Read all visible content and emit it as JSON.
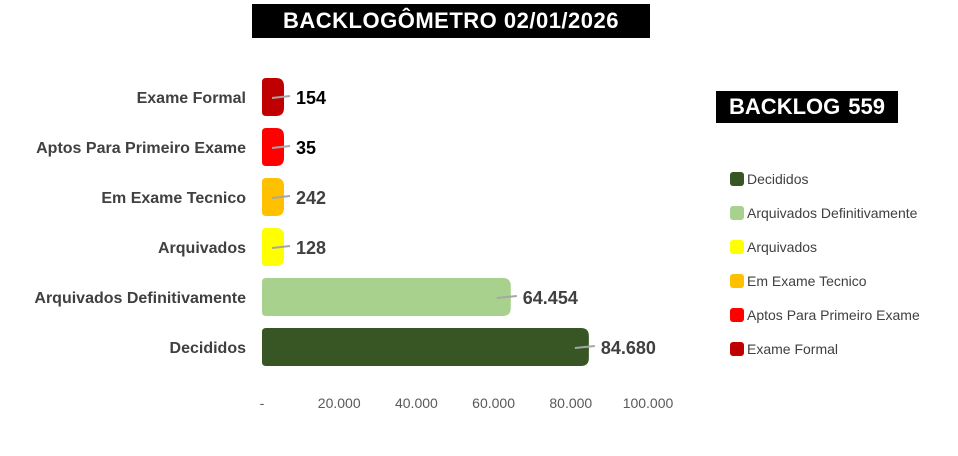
{
  "title": "BACKLOGÔMETRO 02/01/2026",
  "backlog": {
    "label": "BACKLOG",
    "value": "559"
  },
  "chart_data": {
    "type": "bar",
    "orientation": "horizontal",
    "categories": [
      "Exame Formal",
      "Aptos Para Primeiro Exame",
      "Em Exame Tecnico",
      "Arquivados",
      "Arquivados Definitivamente",
      "Decididos"
    ],
    "values": [
      154,
      35,
      242,
      128,
      64454,
      84680
    ],
    "value_labels": [
      "154",
      "35",
      "242",
      "128",
      "64.454",
      "84.680"
    ],
    "colors": [
      "#C00000",
      "#FF0000",
      "#FFC000",
      "#FFFF00",
      "#A9D18E",
      "#375623"
    ],
    "xlim": [
      0,
      100000
    ],
    "x_ticks": [
      0,
      20000,
      40000,
      60000,
      80000,
      100000
    ],
    "x_tick_labels": [
      "-",
      "20.000",
      "40.000",
      "60.000",
      "80.000",
      "100.000"
    ],
    "grid": false,
    "legend_position": "right"
  },
  "legend": [
    {
      "label": "Decididos",
      "color": "#375623"
    },
    {
      "label": "Arquivados Definitivamente",
      "color": "#A9D18E"
    },
    {
      "label": "Arquivados",
      "color": "#FFFF00"
    },
    {
      "label": "Em Exame Tecnico",
      "color": "#FFC000"
    },
    {
      "label": "Aptos Para Primeiro Exame",
      "color": "#FF0000"
    },
    {
      "label": "Exame Formal",
      "color": "#C00000"
    }
  ]
}
